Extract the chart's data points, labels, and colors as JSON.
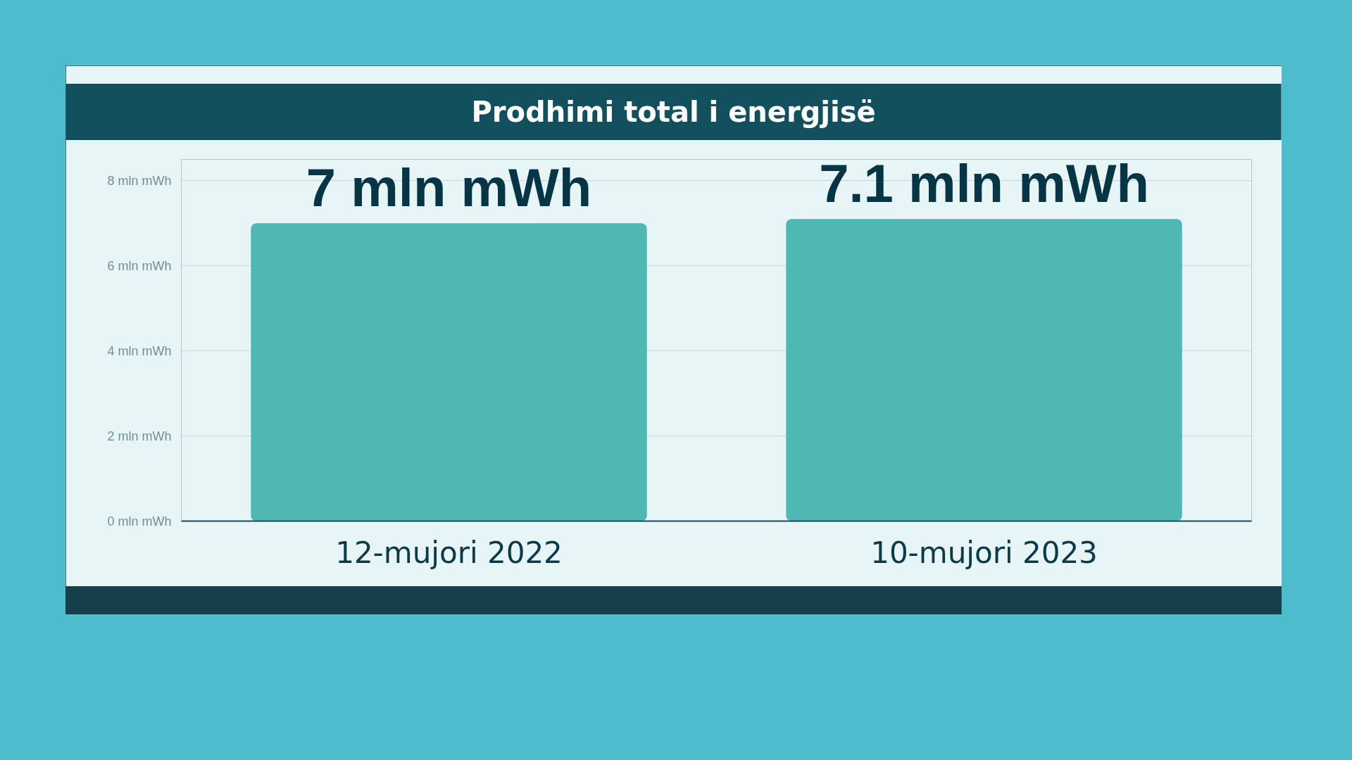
{
  "chart_data": {
    "type": "bar",
    "title": "Prodhimi total i energjisë",
    "categories": [
      "12-mujori 2022",
      "10-mujori 2023"
    ],
    "values": [
      7,
      7.1
    ],
    "color": "#4fb8b2",
    "value_labels": [
      "7 mln mWh",
      "7.1 mln mWh"
    ],
    "ylim": [
      0,
      8.5
    ],
    "yticks": [
      {
        "value": 0,
        "label": "0 mln mWh"
      },
      {
        "value": 2,
        "label": "2 mln mWh"
      },
      {
        "value": 4,
        "label": "4 mln mWh"
      },
      {
        "value": 6,
        "label": "6 mln mWh"
      },
      {
        "value": 8,
        "label": "8 mln mWh"
      }
    ],
    "grid": "y"
  }
}
